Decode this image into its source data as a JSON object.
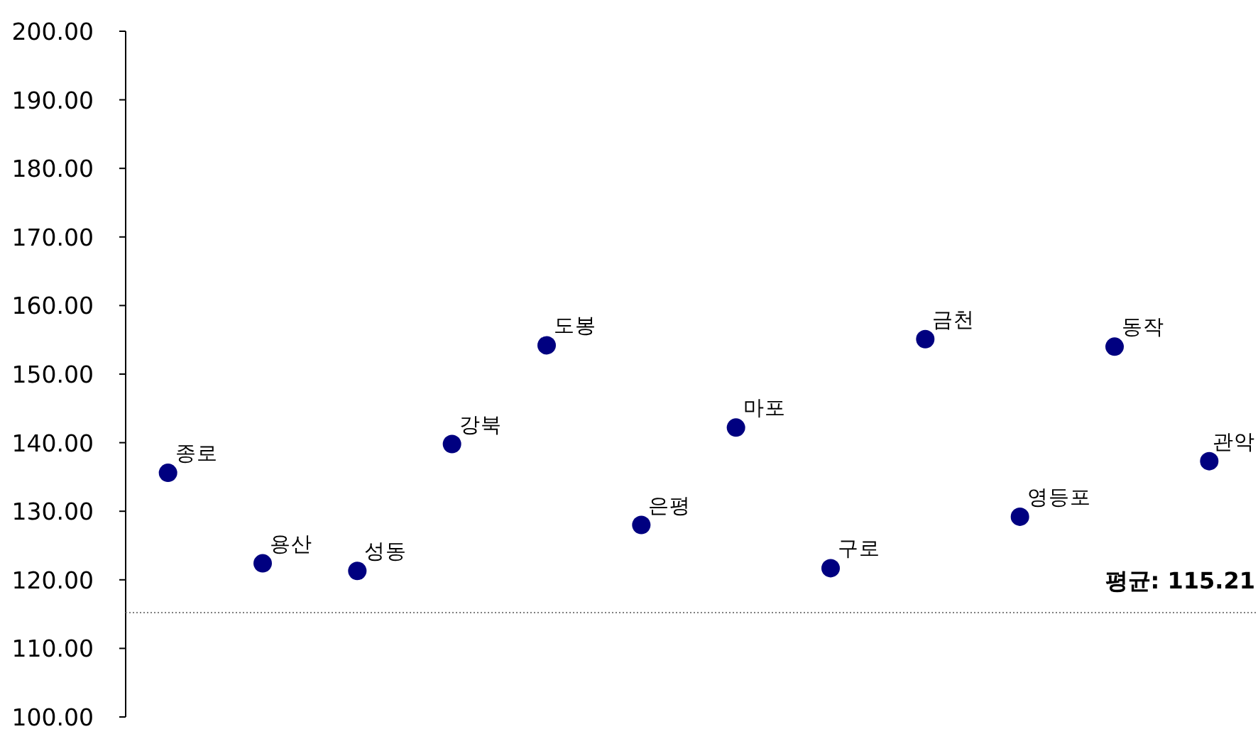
{
  "chart_data": {
    "type": "scatter",
    "color": "#000080",
    "marker": "circle",
    "grid": false,
    "tick_labels": "y",
    "categories": [
      "종로",
      "용산",
      "성동",
      "강북",
      "도봉",
      "은평",
      "마포",
      "구로",
      "금천",
      "영등포",
      "동작",
      "관악"
    ],
    "values": [
      135.6,
      122.4,
      121.3,
      139.8,
      154.2,
      128.0,
      142.2,
      121.7,
      155.1,
      129.2,
      154.0,
      137.3
    ],
    "ylim": [
      100,
      200
    ],
    "yticks": [
      {
        "value": 100,
        "label": "100.00"
      },
      {
        "value": 110,
        "label": "110.00"
      },
      {
        "value": 120,
        "label": "120.00"
      },
      {
        "value": 130,
        "label": "130.00"
      },
      {
        "value": 140,
        "label": "140.00"
      },
      {
        "value": 150,
        "label": "150.00"
      },
      {
        "value": 160,
        "label": "160.00"
      },
      {
        "value": 170,
        "label": "170.00"
      },
      {
        "value": 180,
        "label": "180.00"
      },
      {
        "value": 190,
        "label": "190.00"
      },
      {
        "value": 200,
        "label": "200.00"
      }
    ],
    "ref_lines": [
      {
        "axis": "y",
        "value": 115.21,
        "label": "평균: 115.21",
        "line_style": "dotted",
        "color": "#808080"
      }
    ]
  }
}
